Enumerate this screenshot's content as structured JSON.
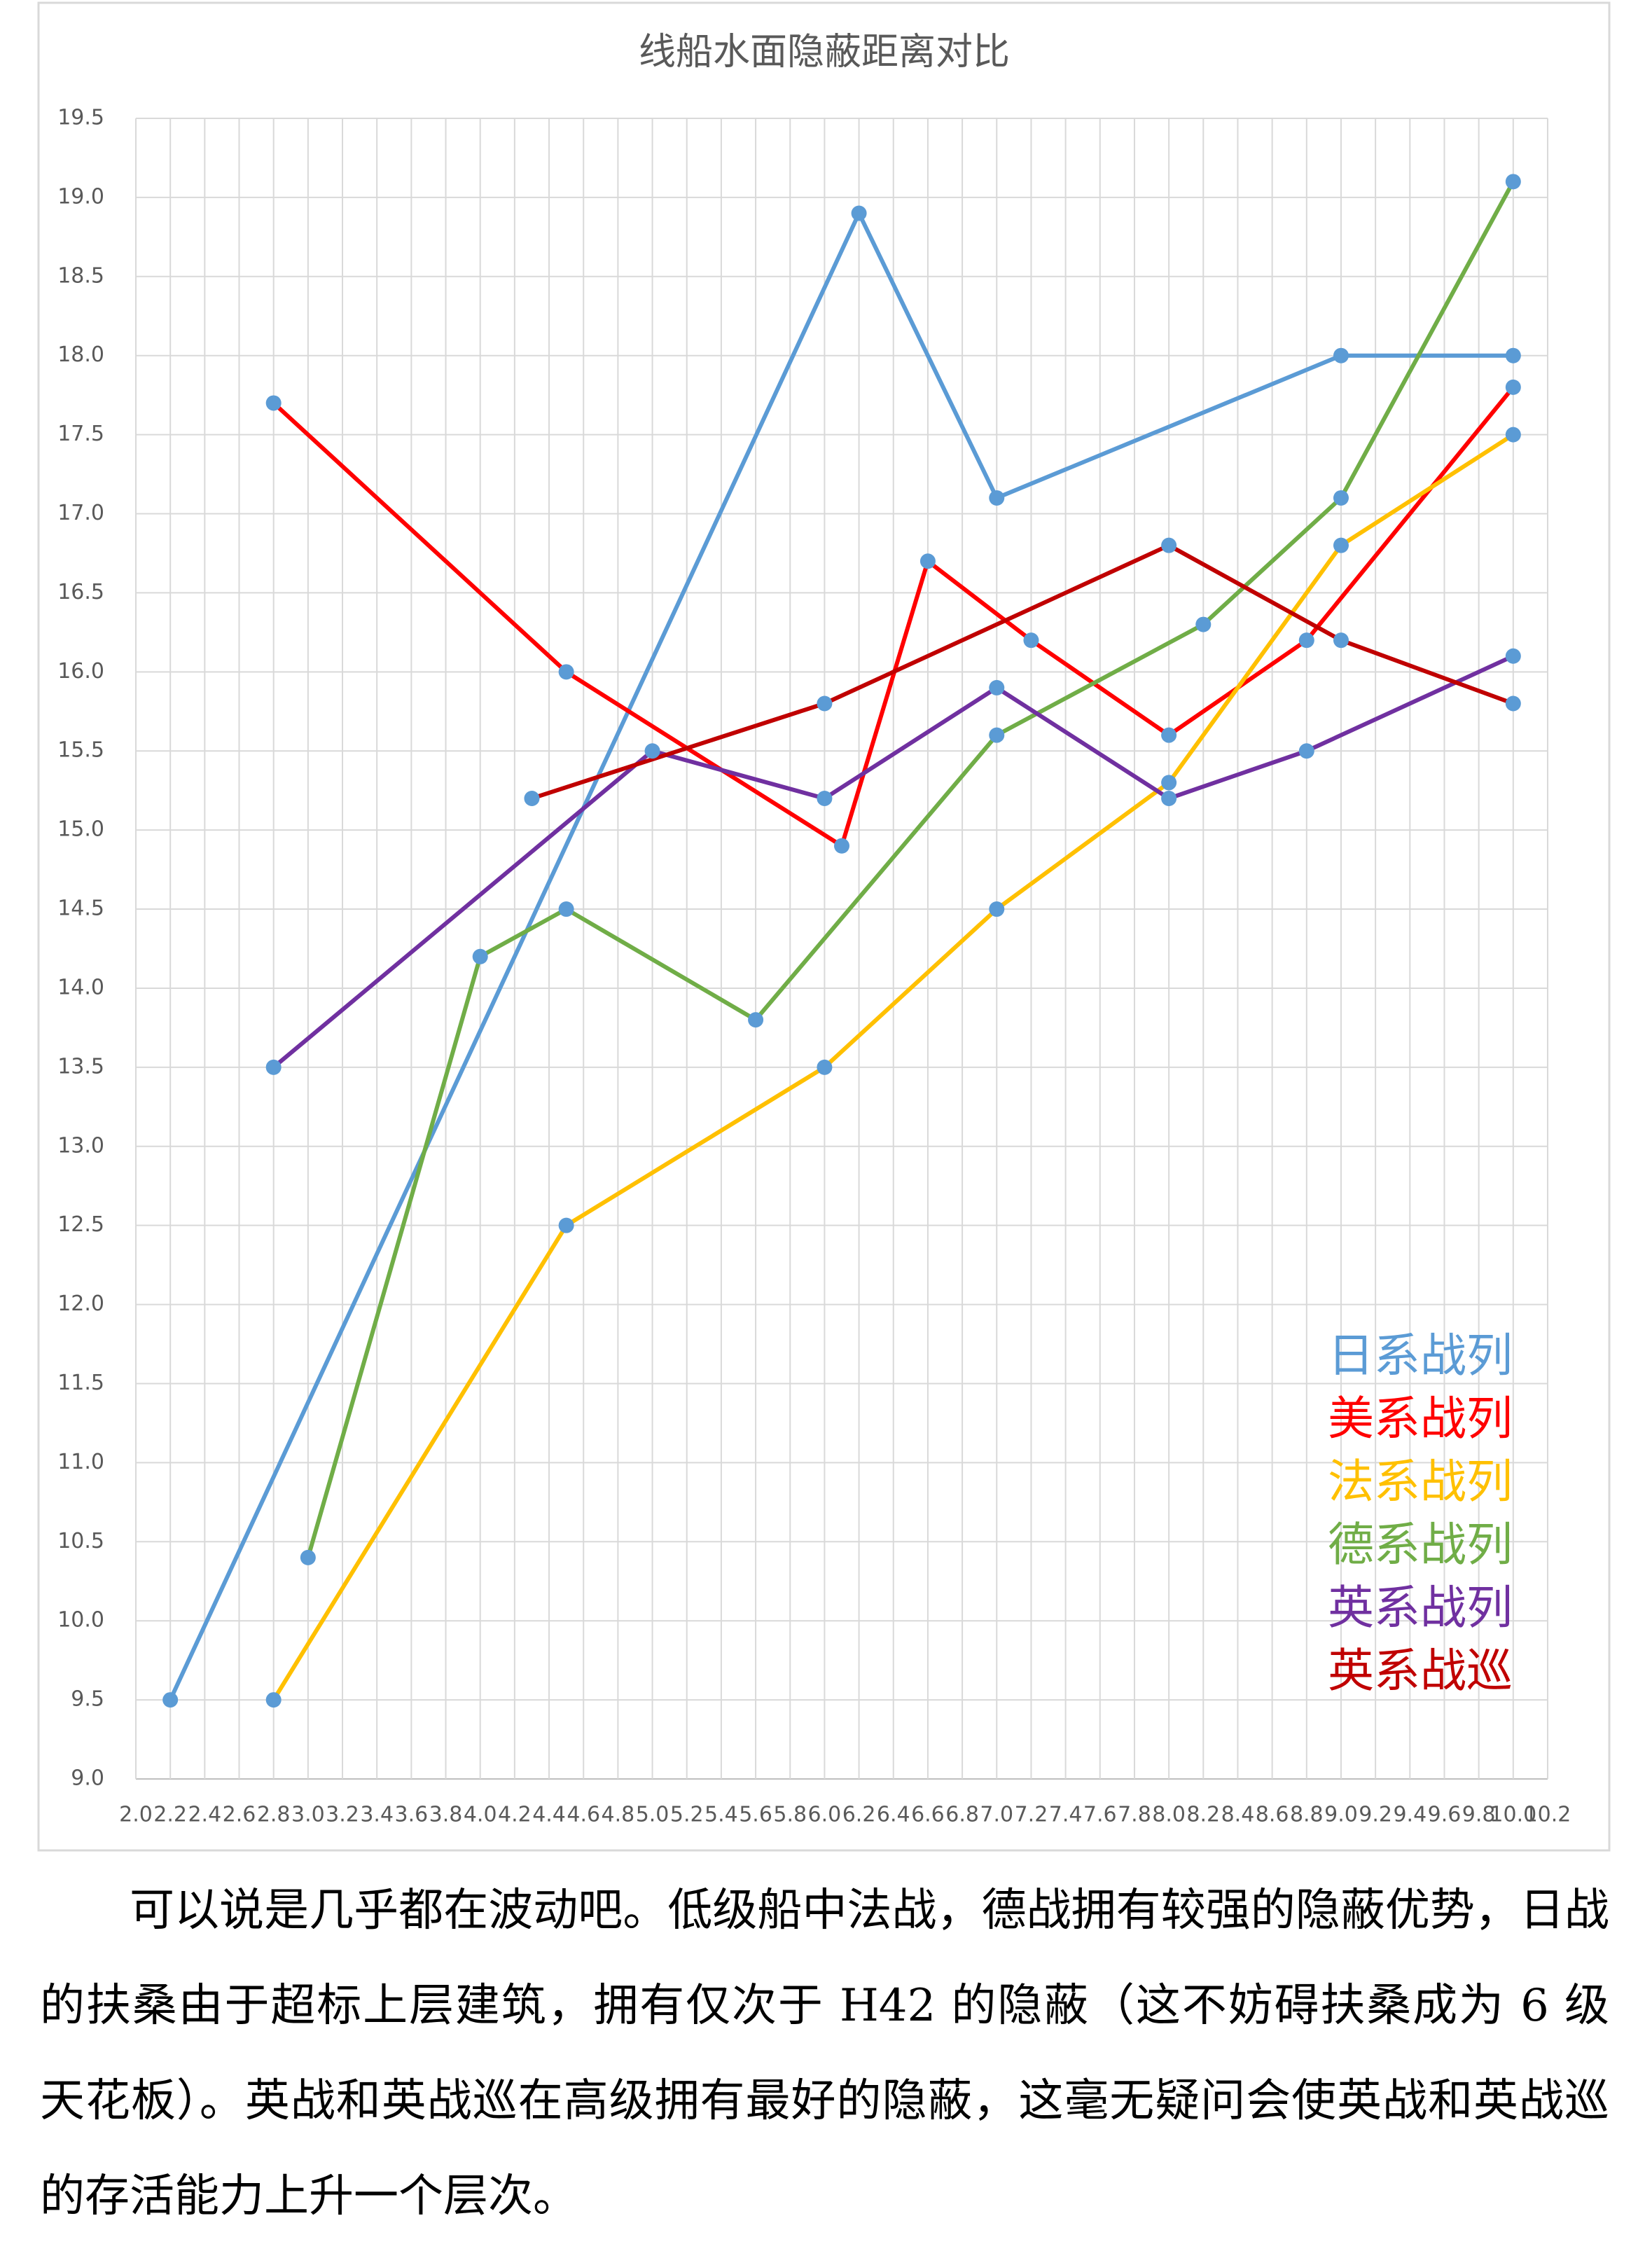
{
  "chart_data": {
    "type": "line",
    "title": "线船水面隐蔽距离对比",
    "xlim": [
      2.0,
      10.2
    ],
    "xticks": [
      {
        "value": 2.0,
        "label": "2.0"
      },
      {
        "value": 2.2,
        "label": "2.2"
      },
      {
        "value": 2.4,
        "label": "2.4"
      },
      {
        "value": 2.6,
        "label": "2.6"
      },
      {
        "value": 2.8,
        "label": "2.8"
      },
      {
        "value": 3.0,
        "label": "3.0"
      },
      {
        "value": 3.2,
        "label": "3.2"
      },
      {
        "value": 3.4,
        "label": "3.4"
      },
      {
        "value": 3.6,
        "label": "3.6"
      },
      {
        "value": 3.8,
        "label": "3.8"
      },
      {
        "value": 4.0,
        "label": "4.0"
      },
      {
        "value": 4.2,
        "label": "4.2"
      },
      {
        "value": 4.4,
        "label": "4.4"
      },
      {
        "value": 4.6,
        "label": "4.6"
      },
      {
        "value": 4.8,
        "label": "4.8"
      },
      {
        "value": 5.0,
        "label": "5.0"
      },
      {
        "value": 5.2,
        "label": "5.2"
      },
      {
        "value": 5.4,
        "label": "5.4"
      },
      {
        "value": 5.6,
        "label": "5.6"
      },
      {
        "value": 5.8,
        "label": "5.8"
      },
      {
        "value": 6.0,
        "label": "6.0"
      },
      {
        "value": 6.2,
        "label": "6.2"
      },
      {
        "value": 6.4,
        "label": "6.4"
      },
      {
        "value": 6.6,
        "label": "6.6"
      },
      {
        "value": 6.8,
        "label": "6.8"
      },
      {
        "value": 7.0,
        "label": "7.0"
      },
      {
        "value": 7.2,
        "label": "7.2"
      },
      {
        "value": 7.4,
        "label": "7.4"
      },
      {
        "value": 7.6,
        "label": "7.6"
      },
      {
        "value": 7.8,
        "label": "7.8"
      },
      {
        "value": 8.0,
        "label": "8.0"
      },
      {
        "value": 8.2,
        "label": "8.2"
      },
      {
        "value": 8.4,
        "label": "8.4"
      },
      {
        "value": 8.6,
        "label": "8.6"
      },
      {
        "value": 8.8,
        "label": "8.8"
      },
      {
        "value": 9.0,
        "label": "9.0"
      },
      {
        "value": 9.2,
        "label": "9.2"
      },
      {
        "value": 9.4,
        "label": "9.4"
      },
      {
        "value": 9.6,
        "label": "9.6"
      },
      {
        "value": 9.8,
        "label": "9.8"
      },
      {
        "value": 10.0,
        "label": "10.0"
      },
      {
        "value": 10.2,
        "label": "10.2"
      }
    ],
    "ylim": [
      9.0,
      19.5
    ],
    "yticks": [
      {
        "value": 9.0,
        "label": "9.0"
      },
      {
        "value": 9.5,
        "label": "9.5"
      },
      {
        "value": 10.0,
        "label": "10.0"
      },
      {
        "value": 10.5,
        "label": "10.5"
      },
      {
        "value": 11.0,
        "label": "11.0"
      },
      {
        "value": 11.5,
        "label": "11.5"
      },
      {
        "value": 12.0,
        "label": "12.0"
      },
      {
        "value": 12.5,
        "label": "12.5"
      },
      {
        "value": 13.0,
        "label": "13.0"
      },
      {
        "value": 13.5,
        "label": "13.5"
      },
      {
        "value": 14.0,
        "label": "14.0"
      },
      {
        "value": 14.5,
        "label": "14.5"
      },
      {
        "value": 15.0,
        "label": "15.0"
      },
      {
        "value": 15.5,
        "label": "15.5"
      },
      {
        "value": 16.0,
        "label": "16.0"
      },
      {
        "value": 16.5,
        "label": "16.5"
      },
      {
        "value": 17.0,
        "label": "17.0"
      },
      {
        "value": 17.5,
        "label": "17.5"
      },
      {
        "value": 18.0,
        "label": "18.0"
      },
      {
        "value": 18.5,
        "label": "18.5"
      },
      {
        "value": 19.0,
        "label": "19.0"
      },
      {
        "value": 19.5,
        "label": "19.5"
      }
    ],
    "grid": true,
    "legend": "lower right",
    "marker_color": "#5b9bd5",
    "series": [
      {
        "name": "日系战列",
        "color": "#5b9bd5",
        "x": [
          2.2,
          6.2,
          7.0,
          9.0,
          10.0
        ],
        "values": [
          9.5,
          18.9,
          17.1,
          18.0,
          18.0
        ]
      },
      {
        "name": "美系战列",
        "color": "#ff0000",
        "x": [
          2.8,
          4.5,
          6.1,
          6.6,
          7.2,
          8.0,
          8.8,
          10.0
        ],
        "values": [
          17.7,
          16.0,
          14.9,
          16.7,
          16.2,
          15.6,
          16.2,
          17.8
        ]
      },
      {
        "name": "法系战列",
        "color": "#ffc000",
        "x": [
          2.8,
          4.5,
          6.0,
          7.0,
          8.0,
          9.0,
          10.0
        ],
        "values": [
          9.5,
          12.5,
          13.5,
          14.5,
          15.3,
          16.8,
          17.5
        ]
      },
      {
        "name": "德系战列",
        "color": "#70ad47",
        "x": [
          3.0,
          4.0,
          4.5,
          5.6,
          7.0,
          8.2,
          9.0,
          10.0
        ],
        "values": [
          10.4,
          14.2,
          14.5,
          13.8,
          15.6,
          16.3,
          17.1,
          19.1
        ]
      },
      {
        "name": "英系战列",
        "color": "#7030a0",
        "x": [
          2.8,
          5.0,
          6.0,
          7.0,
          8.0,
          8.8,
          10.0
        ],
        "values": [
          13.5,
          15.5,
          15.2,
          15.9,
          15.2,
          15.5,
          16.1
        ]
      },
      {
        "name": "英系战巡",
        "color": "#c00000",
        "x": [
          4.3,
          6.0,
          8.0,
          9.0,
          10.0
        ],
        "values": [
          15.2,
          15.8,
          16.8,
          16.2,
          15.8
        ]
      }
    ]
  },
  "body": {
    "paragraph": "可以说是几乎都在波动吧。低级船中法战，德战拥有较强的隐蔽优势，日战的扶桑由于超标上层建筑，拥有仅次于 H42 的隐蔽（这不妨碍扶桑成为 6 级天花板）。英战和英战巡在高级拥有最好的隐蔽，这毫无疑问会使英战和英战巡的存活能力上升一个层次。"
  }
}
